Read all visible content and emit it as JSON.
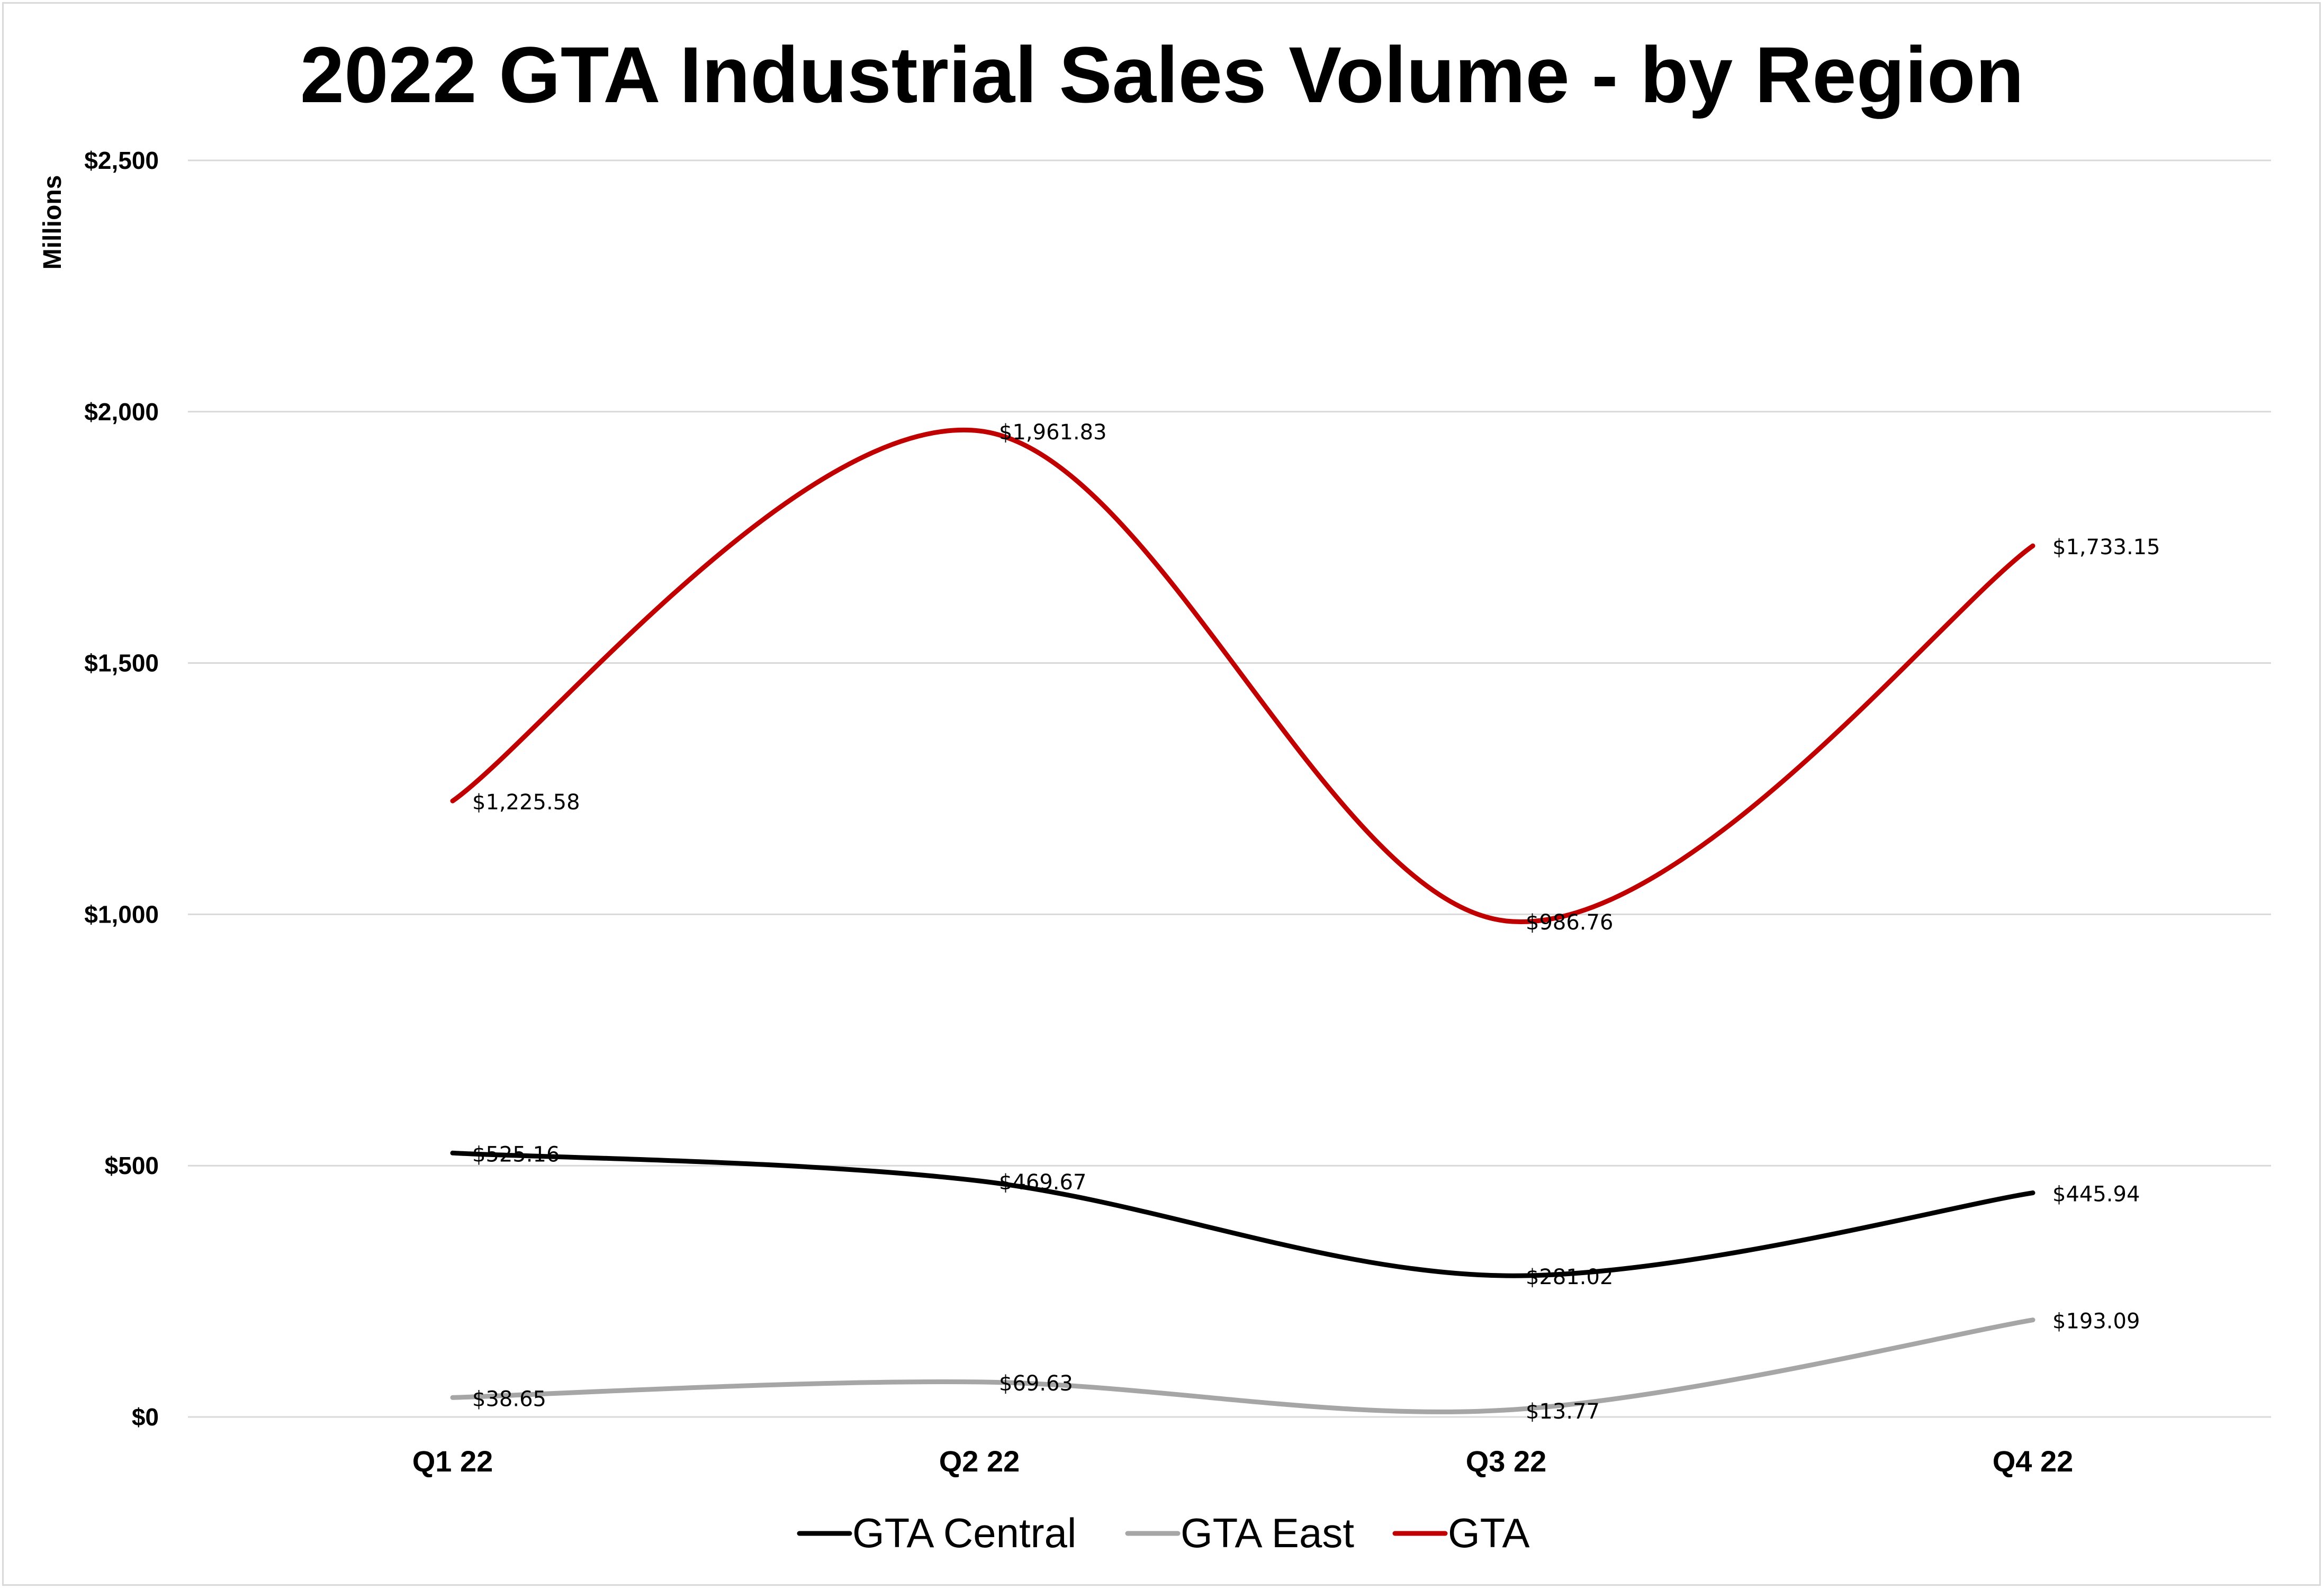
{
  "chart_data": {
    "type": "line",
    "title": "2022 GTA Industrial Sales Volume - by Region",
    "ylabel": "Millions",
    "xlabel": "",
    "categories": [
      "Q1 22",
      "Q2 22",
      "Q3 22",
      "Q4 22"
    ],
    "ylim": [
      0,
      2500
    ],
    "yticks": [
      0,
      500,
      1000,
      1500,
      2000,
      2500
    ],
    "ytick_labels": [
      "$0",
      "$500",
      "$1,000",
      "$1,500",
      "$2,000",
      "$2,500"
    ],
    "grid": true,
    "smooth": true,
    "legend_position": "bottom",
    "series": [
      {
        "name": "GTA Central",
        "color": "#000000",
        "values": [
          525.16,
          469.67,
          281.02,
          445.94
        ],
        "labels": [
          "$525.16",
          "$469.67",
          "$281.02",
          "$445.94"
        ]
      },
      {
        "name": "GTA East",
        "color": "#a6a6a6",
        "values": [
          38.65,
          69.63,
          13.77,
          193.09
        ],
        "labels": [
          "$38.65",
          "$69.63",
          "$13.77",
          "$193.09"
        ]
      },
      {
        "name": "GTA",
        "color": "#c00000",
        "values": [
          1225.58,
          1961.83,
          986.76,
          1733.15
        ],
        "labels": [
          "$1,225.58",
          "$1,961.83",
          "$986.76",
          "$1,733.15"
        ]
      }
    ]
  }
}
